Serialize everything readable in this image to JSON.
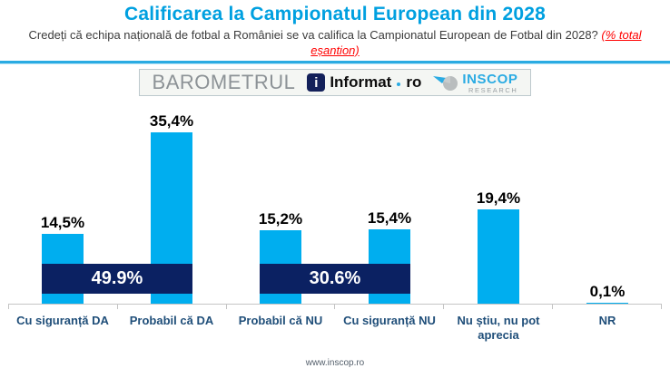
{
  "header": {
    "title": "Calificarea la Campionatul European din 2028",
    "question": "Credeți că echipa națională de fotbal a României se va califica la Campionatul European de Fotbal din 2028?",
    "sample_note": "(% total eșantion)"
  },
  "branding": {
    "barometrul": "BAROMETRUL",
    "informat_icon_glyph": "i",
    "informat_name": "Informat",
    "informat_tld": "ro",
    "inscop_name": "INSCOP",
    "inscop_sub": "RESEARCH"
  },
  "chart_data": {
    "type": "bar",
    "title": "Calificarea la Campionatul European din 2028",
    "xlabel": "",
    "ylabel": "",
    "ylim": [
      0,
      40
    ],
    "grid": false,
    "legend": "none",
    "categories": [
      "Cu siguranță DA",
      "Probabil că DA",
      "Probabil că NU",
      "Cu siguranță NU",
      "Nu știu, nu pot aprecia",
      "NR"
    ],
    "values": [
      14.5,
      35.4,
      15.2,
      15.4,
      19.4,
      0.1
    ],
    "value_labels": [
      "14,5%",
      "35,4%",
      "15,2%",
      "15,4%",
      "19,4%",
      "0,1%"
    ],
    "aggregates": [
      {
        "label": "49.9%",
        "value": 49.9,
        "from_index": 0,
        "to_index": 1,
        "spans": [
          "Cu siguranță DA",
          "Probabil că DA"
        ]
      },
      {
        "label": "30.6%",
        "value": 30.6,
        "from_index": 2,
        "to_index": 3,
        "spans": [
          "Probabil că NU",
          "Cu siguranță NU"
        ]
      }
    ],
    "bar_color": "#00aeef",
    "aggregate_color": "#0b2162",
    "category_label_color": "#1f4e79"
  },
  "footer": {
    "url": "www.inscop.ro"
  },
  "colors": {
    "title_blue": "#00a0e0",
    "divider_blue": "#2aabe2",
    "note_red": "#ff0000",
    "inscop_blue": "#2aabe3",
    "axis_gray": "#c4c4c4"
  }
}
